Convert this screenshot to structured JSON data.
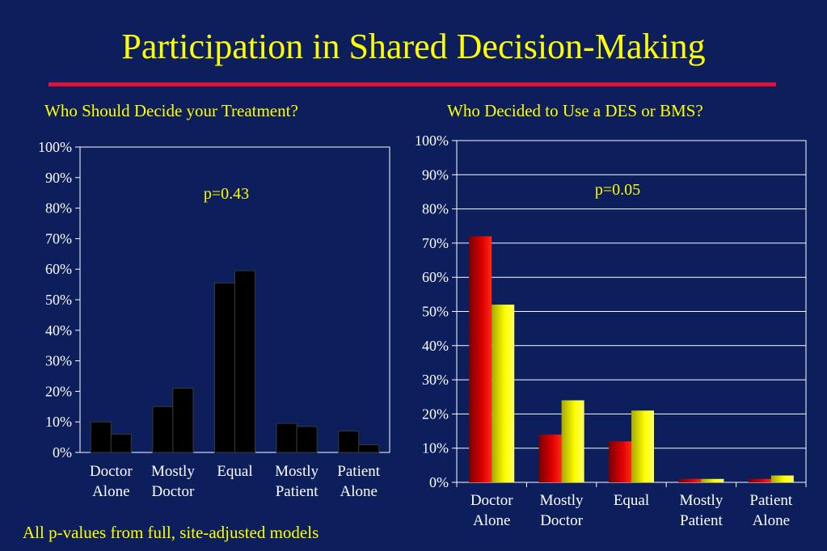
{
  "title": "Participation in Shared Decision-Making",
  "footnote": "All p-values from full, site-adjusted models",
  "colors": {
    "background": "#0c1e5c",
    "title": "#ffff00",
    "rule": "#e0103a",
    "left_bars": "#000000",
    "red_bars": "#cc0000",
    "yellow_bars": "#ffff00"
  },
  "chart_data": [
    {
      "type": "bar",
      "title": "Who Should Decide your Treatment?",
      "annotation": "p=0.43",
      "categories": [
        [
          "Doctor",
          "Alone"
        ],
        [
          "Mostly",
          "Doctor"
        ],
        [
          "Equal"
        ],
        [
          "Mostly",
          "Patient"
        ],
        [
          "Patient",
          "Alone"
        ]
      ],
      "series": [
        {
          "values": [
            10,
            15,
            55.5,
            9.5,
            7
          ]
        },
        {
          "values": [
            6,
            21,
            59.5,
            8.5,
            2.5
          ]
        }
      ],
      "yticks": [
        "0%",
        "10%",
        "20%",
        "30%",
        "40%",
        "50%",
        "60%",
        "70%",
        "80%",
        "90%",
        "100%"
      ],
      "ylim": [
        0,
        100
      ],
      "grid": false,
      "style": "black-flat"
    },
    {
      "type": "bar",
      "title": "Who Decided to Use a DES or BMS?",
      "annotation": "p=0.05",
      "categories": [
        [
          "Doctor",
          "Alone"
        ],
        [
          "Mostly",
          "Doctor"
        ],
        [
          "Equal"
        ],
        [
          "Mostly",
          "Patient"
        ],
        [
          "Patient",
          "Alone"
        ]
      ],
      "series": [
        {
          "values": [
            72,
            14,
            12,
            1,
            1
          ]
        },
        {
          "values": [
            52,
            24,
            21,
            1,
            2
          ]
        }
      ],
      "yticks": [
        "0%",
        "10%",
        "20%",
        "30%",
        "40%",
        "50%",
        "60%",
        "70%",
        "80%",
        "90%",
        "100%"
      ],
      "ylim": [
        0,
        100
      ],
      "grid": true,
      "style": "red-yellow-gradient"
    }
  ]
}
